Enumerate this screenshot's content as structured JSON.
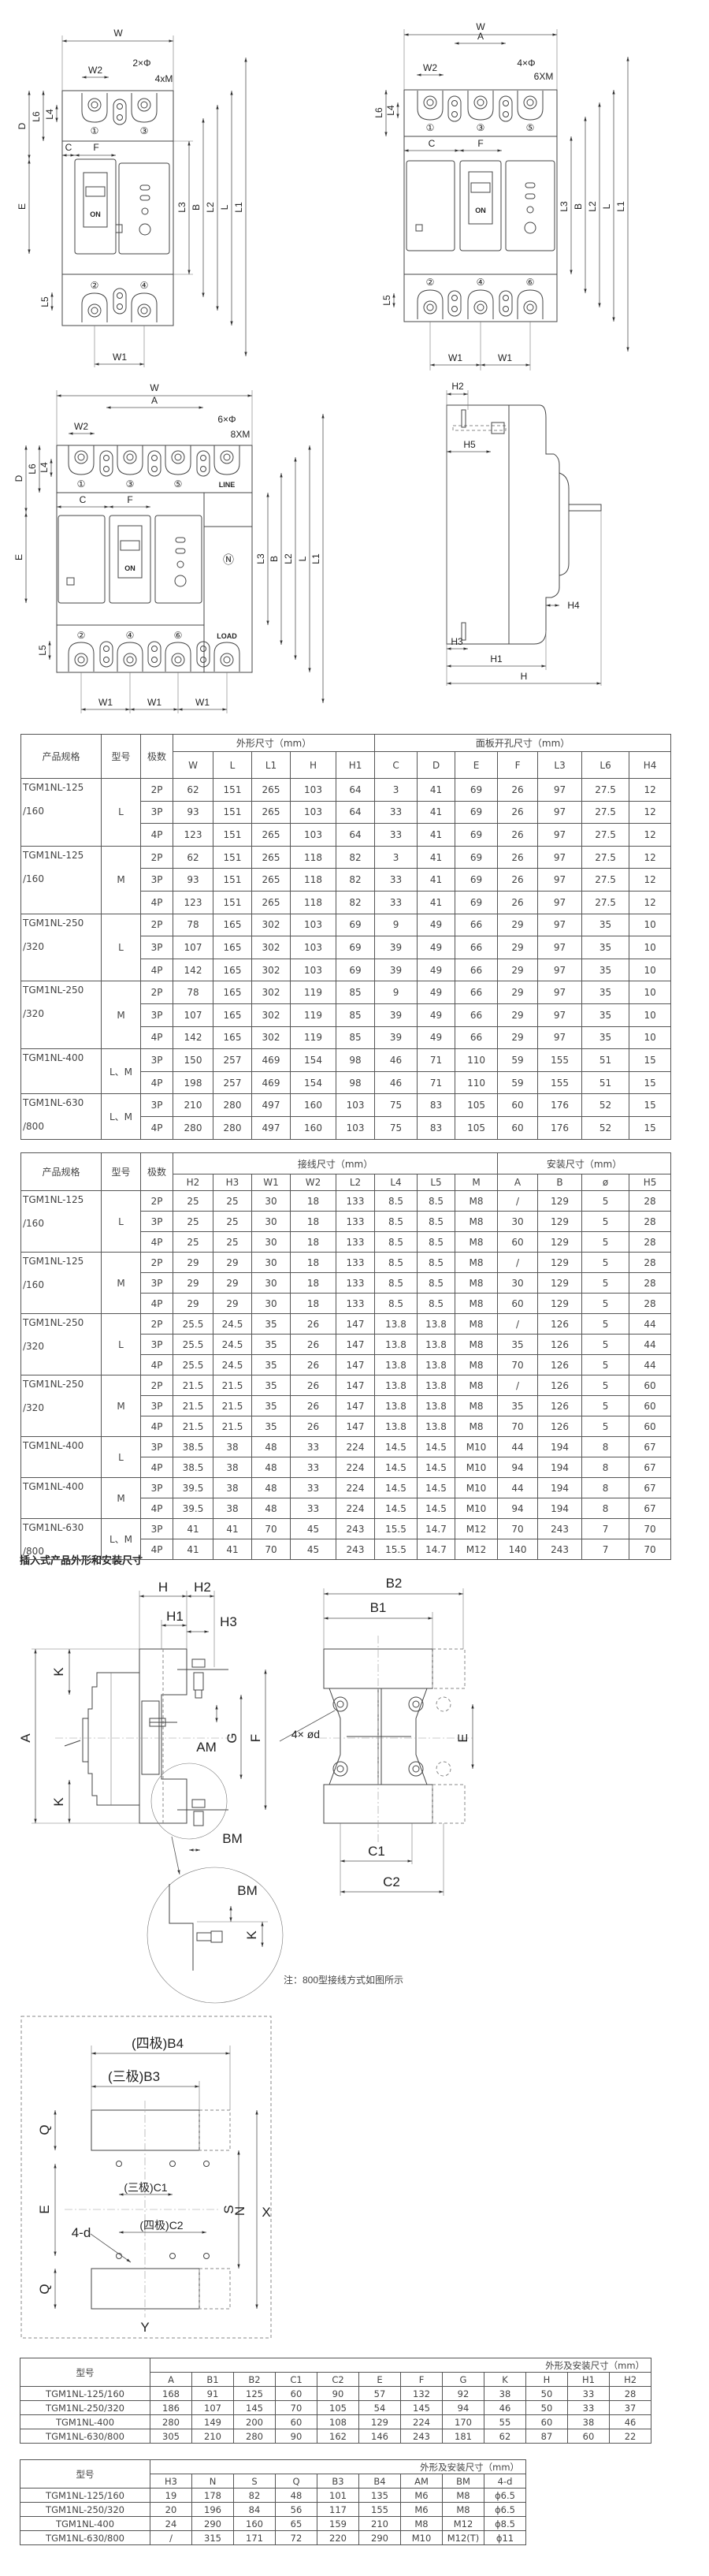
{
  "drawing_front": {
    "W": "W",
    "W1": "W1",
    "W2": "W2",
    "A": "A",
    "C": "C",
    "F": "F",
    "D": "D",
    "E": "E",
    "L": "L",
    "L1": "L1",
    "L2": "L2",
    "L3": "L3",
    "L4": "L4",
    "L5": "L5",
    "L6": "L6",
    "B": "B",
    "H": "H",
    "H1": "H1",
    "H2": "H2",
    "H3": "H3",
    "H4": "H4",
    "H5": "H5",
    "hole_2p": "2×Φ",
    "screw_2p": "4xM",
    "hole_3p": "4×Φ",
    "screw_3p": "6XM",
    "hole_4p": "6×Φ",
    "screw_4p": "8XM",
    "on": "ON",
    "line": "LINE",
    "load": "LOAD",
    "neutral": "Ⓝ",
    "poles": [
      "①",
      "②",
      "③",
      "④",
      "⑤",
      "⑥"
    ]
  },
  "section_title": "插入式产品外形和安装尺寸",
  "drawing_plugin": {
    "H": "H",
    "H1": "H1",
    "H2": "H2",
    "H3": "H3",
    "A": "A",
    "K": "K",
    "AM": "AM",
    "G": "G",
    "F": "F",
    "E": "E",
    "B1": "B1",
    "B2": "B2",
    "C1": "C1",
    "C2": "C2",
    "BM": "BM",
    "holes": "4× ød"
  },
  "note": "注：800型接线方式如图所示",
  "drawing_cutout": {
    "B4": "(四极)B4",
    "B3": "(三极)B3",
    "C1": "(三极)C1",
    "C2": "(四极)C2",
    "Q": "Q",
    "E": "E",
    "S": "S",
    "N": "N",
    "X": "X",
    "Y": "Y",
    "holes": "4-d"
  },
  "table_dimensions": {
    "product": "产品规格",
    "type": "型号",
    "poles": "极数",
    "group1": "外形尺寸（mm）",
    "group2": "面板开孔尺寸（mm）",
    "cols1": [
      "W",
      "L",
      "L1",
      "H",
      "H1"
    ],
    "cols2": [
      "C",
      "D",
      "E",
      "F",
      "L3",
      "L6",
      "H4"
    ],
    "groups": [
      {
        "spec": [
          "TGM1NL-125",
          "/160"
        ],
        "type": "L",
        "rows": [
          [
            "2P",
            "62",
            "151",
            "265",
            "103",
            "64",
            "3",
            "41",
            "69",
            "26",
            "97",
            "27.5",
            "12"
          ],
          [
            "3P",
            "93",
            "151",
            "265",
            "103",
            "64",
            "33",
            "41",
            "69",
            "26",
            "97",
            "27.5",
            "12"
          ],
          [
            "4P",
            "123",
            "151",
            "265",
            "103",
            "64",
            "33",
            "41",
            "69",
            "26",
            "97",
            "27.5",
            "12"
          ]
        ]
      },
      {
        "spec": [
          "TGM1NL-125",
          "/160"
        ],
        "type": "M",
        "rows": [
          [
            "2P",
            "62",
            "151",
            "265",
            "118",
            "82",
            "3",
            "41",
            "69",
            "26",
            "97",
            "27.5",
            "12"
          ],
          [
            "3P",
            "93",
            "151",
            "265",
            "118",
            "82",
            "33",
            "41",
            "69",
            "26",
            "97",
            "27.5",
            "12"
          ],
          [
            "4P",
            "123",
            "151",
            "265",
            "118",
            "82",
            "33",
            "41",
            "69",
            "26",
            "97",
            "27.5",
            "12"
          ]
        ]
      },
      {
        "spec": [
          "TGM1NL-250",
          "/320"
        ],
        "type": "L",
        "rows": [
          [
            "2P",
            "78",
            "165",
            "302",
            "103",
            "69",
            "9",
            "49",
            "66",
            "29",
            "97",
            "35",
            "10"
          ],
          [
            "3P",
            "107",
            "165",
            "302",
            "103",
            "69",
            "39",
            "49",
            "66",
            "29",
            "97",
            "35",
            "10"
          ],
          [
            "4P",
            "142",
            "165",
            "302",
            "103",
            "69",
            "39",
            "49",
            "66",
            "29",
            "97",
            "35",
            "10"
          ]
        ]
      },
      {
        "spec": [
          "TGM1NL-250",
          "/320"
        ],
        "type": "M",
        "rows": [
          [
            "2P",
            "78",
            "165",
            "302",
            "119",
            "85",
            "9",
            "49",
            "66",
            "29",
            "97",
            "35",
            "10"
          ],
          [
            "3P",
            "107",
            "165",
            "302",
            "119",
            "85",
            "39",
            "49",
            "66",
            "29",
            "97",
            "35",
            "10"
          ],
          [
            "4P",
            "142",
            "165",
            "302",
            "119",
            "85",
            "39",
            "49",
            "66",
            "29",
            "97",
            "35",
            "10"
          ]
        ]
      },
      {
        "spec": [
          "TGM1NL-400",
          ""
        ],
        "type": "L、M",
        "rows": [
          [
            "3P",
            "150",
            "257",
            "469",
            "154",
            "98",
            "46",
            "71",
            "110",
            "59",
            "155",
            "51",
            "15"
          ],
          [
            "4P",
            "198",
            "257",
            "469",
            "154",
            "98",
            "46",
            "71",
            "110",
            "59",
            "155",
            "51",
            "15"
          ]
        ]
      },
      {
        "spec": [
          "TGM1NL-630",
          "/800"
        ],
        "type": "L、M",
        "rows": [
          [
            "3P",
            "210",
            "280",
            "497",
            "160",
            "103",
            "75",
            "83",
            "105",
            "60",
            "176",
            "52",
            "15"
          ],
          [
            "4P",
            "280",
            "280",
            "497",
            "160",
            "103",
            "75",
            "83",
            "105",
            "60",
            "176",
            "52",
            "15"
          ]
        ]
      }
    ]
  },
  "table_wiring": {
    "product": "产品规格",
    "type": "型号",
    "poles": "极数",
    "group1": "接线尺寸（mm）",
    "group2": "安装尺寸（mm）",
    "cols1": [
      "H2",
      "H3",
      "W1",
      "W2",
      "L2",
      "L4",
      "L5",
      "M"
    ],
    "cols2": [
      "A",
      "B",
      "ø",
      "H5"
    ],
    "groups": [
      {
        "spec": [
          "TGM1NL-125",
          "/160"
        ],
        "type": "L",
        "rows": [
          [
            "2P",
            "25",
            "25",
            "30",
            "18",
            "133",
            "8.5",
            "8.5",
            "M8",
            "/",
            "129",
            "5",
            "28"
          ],
          [
            "3P",
            "25",
            "25",
            "30",
            "18",
            "133",
            "8.5",
            "8.5",
            "M8",
            "30",
            "129",
            "5",
            "28"
          ],
          [
            "4P",
            "25",
            "25",
            "30",
            "18",
            "133",
            "8.5",
            "8.5",
            "M8",
            "60",
            "129",
            "5",
            "28"
          ]
        ]
      },
      {
        "spec": [
          "TGM1NL-125",
          "/160"
        ],
        "type": "M",
        "rows": [
          [
            "2P",
            "29",
            "29",
            "30",
            "18",
            "133",
            "8.5",
            "8.5",
            "M8",
            "/",
            "129",
            "5",
            "28"
          ],
          [
            "3P",
            "29",
            "29",
            "30",
            "18",
            "133",
            "8.5",
            "8.5",
            "M8",
            "30",
            "129",
            "5",
            "28"
          ],
          [
            "4P",
            "29",
            "29",
            "30",
            "18",
            "133",
            "8.5",
            "8.5",
            "M8",
            "60",
            "129",
            "5",
            "28"
          ]
        ]
      },
      {
        "spec": [
          "TGM1NL-250",
          "/320"
        ],
        "type": "L",
        "rows": [
          [
            "2P",
            "25.5",
            "24.5",
            "35",
            "26",
            "147",
            "13.8",
            "13.8",
            "M8",
            "/",
            "126",
            "5",
            "44"
          ],
          [
            "3P",
            "25.5",
            "24.5",
            "35",
            "26",
            "147",
            "13.8",
            "13.8",
            "M8",
            "35",
            "126",
            "5",
            "44"
          ],
          [
            "4P",
            "25.5",
            "24.5",
            "35",
            "26",
            "147",
            "13.8",
            "13.8",
            "M8",
            "70",
            "126",
            "5",
            "44"
          ]
        ]
      },
      {
        "spec": [
          "TGM1NL-250",
          "/320"
        ],
        "type": "M",
        "rows": [
          [
            "2P",
            "21.5",
            "21.5",
            "35",
            "26",
            "147",
            "13.8",
            "13.8",
            "M8",
            "/",
            "126",
            "5",
            "60"
          ],
          [
            "3P",
            "21.5",
            "21.5",
            "35",
            "26",
            "147",
            "13.8",
            "13.8",
            "M8",
            "35",
            "126",
            "5",
            "60"
          ],
          [
            "4P",
            "21.5",
            "21.5",
            "35",
            "26",
            "147",
            "13.8",
            "13.8",
            "M8",
            "70",
            "126",
            "5",
            "60"
          ]
        ]
      },
      {
        "spec": [
          "TGM1NL-400",
          ""
        ],
        "type": "L",
        "rows": [
          [
            "3P",
            "38.5",
            "38",
            "48",
            "33",
            "224",
            "14.5",
            "14.5",
            "M10",
            "44",
            "194",
            "8",
            "67"
          ],
          [
            "4P",
            "38.5",
            "38",
            "48",
            "33",
            "224",
            "14.5",
            "14.5",
            "M10",
            "94",
            "194",
            "8",
            "67"
          ]
        ]
      },
      {
        "spec": [
          "TGM1NL-400",
          ""
        ],
        "type": "M",
        "rows": [
          [
            "3P",
            "39.5",
            "38",
            "48",
            "33",
            "224",
            "14.5",
            "14.5",
            "M10",
            "44",
            "194",
            "8",
            "67"
          ],
          [
            "4P",
            "39.5",
            "38",
            "48",
            "33",
            "224",
            "14.5",
            "14.5",
            "M10",
            "94",
            "194",
            "8",
            "67"
          ]
        ]
      },
      {
        "spec": [
          "TGM1NL-630",
          "/800"
        ],
        "type": "L、M",
        "rows": [
          [
            "3P",
            "41",
            "41",
            "70",
            "45",
            "243",
            "15.5",
            "14.7",
            "M12",
            "70",
            "243",
            "7",
            "70"
          ],
          [
            "4P",
            "41",
            "41",
            "70",
            "45",
            "243",
            "15.5",
            "14.7",
            "M12",
            "140",
            "243",
            "7",
            "70"
          ]
        ]
      }
    ]
  },
  "table_plugin_1": {
    "model": "型号",
    "group": "外形及安装尺寸（mm）",
    "cols": [
      "A",
      "B1",
      "B2",
      "C1",
      "C2",
      "E",
      "F",
      "G",
      "K",
      "H",
      "H1",
      "H2"
    ],
    "rows": [
      [
        "TGM1NL-125/160",
        "168",
        "91",
        "125",
        "60",
        "90",
        "57",
        "132",
        "92",
        "38",
        "50",
        "33",
        "28"
      ],
      [
        "TGM1NL-250/320",
        "186",
        "107",
        "145",
        "70",
        "105",
        "54",
        "145",
        "94",
        "46",
        "50",
        "33",
        "37"
      ],
      [
        "TGM1NL-400",
        "280",
        "149",
        "200",
        "60",
        "108",
        "129",
        "224",
        "170",
        "55",
        "60",
        "38",
        "46"
      ],
      [
        "TGM1NL-630/800",
        "305",
        "210",
        "280",
        "90",
        "162",
        "146",
        "243",
        "181",
        "62",
        "87",
        "60",
        "22"
      ]
    ]
  },
  "table_plugin_2": {
    "model": "型号",
    "group": "外形及安装尺寸（mm）",
    "cols": [
      "H3",
      "N",
      "S",
      "Q",
      "B3",
      "B4",
      "AM",
      "BM",
      "4-d"
    ],
    "rows": [
      [
        "TGM1NL-125/160",
        "19",
        "178",
        "82",
        "48",
        "101",
        "135",
        "M6",
        "M8",
        "ϕ6.5"
      ],
      [
        "TGM1NL-250/320",
        "20",
        "196",
        "84",
        "56",
        "117",
        "155",
        "M6",
        "M8",
        "ϕ6.5"
      ],
      [
        "TGM1NL-400",
        "24",
        "290",
        "160",
        "65",
        "159",
        "210",
        "M8",
        "M12",
        "ϕ8.5"
      ],
      [
        "TGM1NL-630/800",
        "/",
        "315",
        "171",
        "72",
        "220",
        "290",
        "M10",
        "M12(T)",
        "ϕ11"
      ]
    ]
  }
}
